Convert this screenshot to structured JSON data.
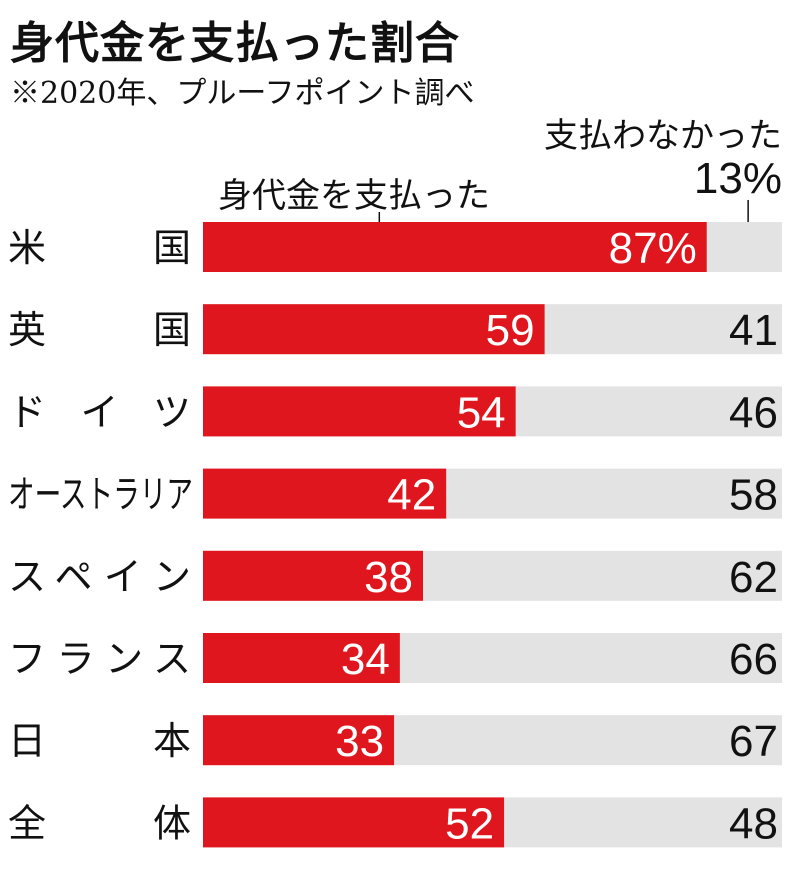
{
  "chart_data": {
    "type": "bar",
    "stacked": true,
    "orientation": "horizontal",
    "title": "身代金を支払った割合",
    "subtitle": "※2020年、プルーフポイント調べ",
    "categories": [
      "米　国",
      "英　国",
      "ド イ ツ",
      "オーストラリア",
      "スペイン",
      "フランス",
      "日　本",
      "全　体"
    ],
    "series": [
      {
        "name": "身代金を支払った",
        "values": [
          87,
          59,
          54,
          42,
          38,
          34,
          33,
          52
        ],
        "labels": [
          "87%",
          "59",
          "54",
          "42",
          "38",
          "34",
          "33",
          "52"
        ]
      },
      {
        "name": "支払わなかった",
        "values": [
          13,
          41,
          46,
          58,
          62,
          66,
          67,
          48
        ],
        "labels": [
          "13%",
          "41",
          "46",
          "58",
          "62",
          "66",
          "67",
          "48"
        ]
      }
    ],
    "xlim": [
      0,
      100
    ],
    "colors": {
      "paid": "#e0161e",
      "not_paid": "#e3e3e3",
      "text_on_bar": "#ffffff",
      "text": "#111111"
    }
  }
}
